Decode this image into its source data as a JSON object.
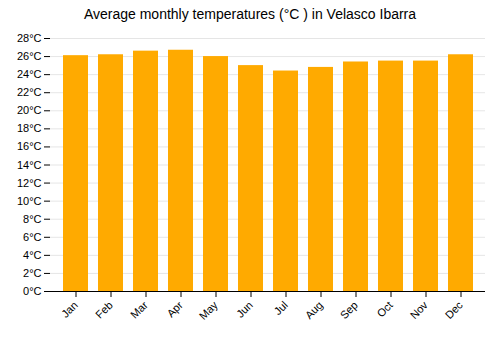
{
  "chart_data": {
    "type": "bar",
    "title": "Average monthly temperatures (°C ) in Velasco Ibarra",
    "categories": [
      "Jan",
      "Feb",
      "Mar",
      "Apr",
      "May",
      "Jun",
      "Jul",
      "Aug",
      "Sep",
      "Oct",
      "Nov",
      "Dec"
    ],
    "values": [
      26.1,
      26.2,
      26.6,
      26.7,
      26.0,
      25.0,
      24.4,
      24.8,
      25.4,
      25.5,
      25.5,
      26.2
    ],
    "color": "#FFAA00",
    "ylim": [
      0,
      28
    ],
    "yticks": [
      {
        "value": 0,
        "label": "0°C"
      },
      {
        "value": 2,
        "label": "2°C"
      },
      {
        "value": 4,
        "label": "4°C"
      },
      {
        "value": 6,
        "label": "6°C"
      },
      {
        "value": 8,
        "label": "8°C"
      },
      {
        "value": 10,
        "label": "10°C"
      },
      {
        "value": 12,
        "label": "12°C"
      },
      {
        "value": 14,
        "label": "14°C"
      },
      {
        "value": 16,
        "label": "16°C"
      },
      {
        "value": 18,
        "label": "18°C"
      },
      {
        "value": 20,
        "label": "20°C"
      },
      {
        "value": 22,
        "label": "22°C"
      },
      {
        "value": 24,
        "label": "24°C"
      },
      {
        "value": 26,
        "label": "26°C"
      },
      {
        "value": 28,
        "label": "28°C"
      }
    ],
    "grid": true
  }
}
